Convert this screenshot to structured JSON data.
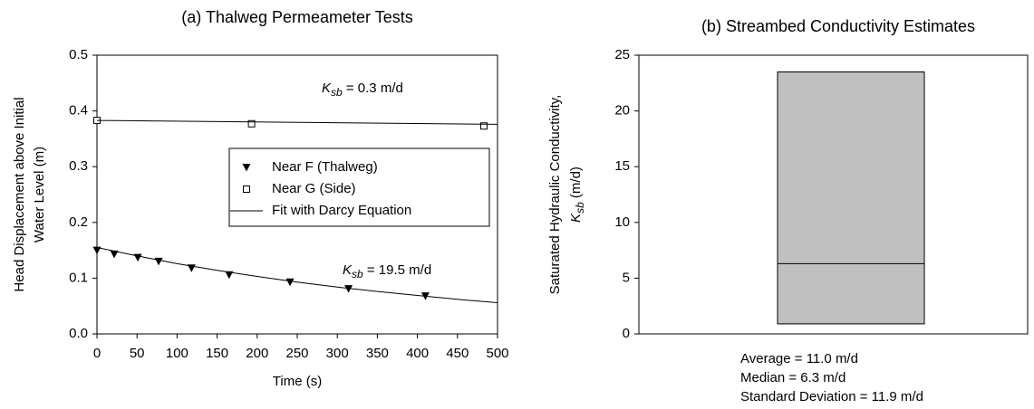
{
  "chart_data": [
    {
      "type": "scatter-line",
      "title": "(a) Thalweg Permeameter Tests",
      "xlabel": "Time (s)",
      "ylabel": [
        "Head Displacement above Initial",
        "Water Level (m)"
      ],
      "xlim": [
        0,
        500
      ],
      "xticks": [
        0,
        50,
        100,
        150,
        200,
        250,
        300,
        350,
        400,
        450,
        500
      ],
      "ylim": [
        0,
        0.5
      ],
      "yticks": [
        {
          "value": 0,
          "label": "0.0"
        },
        0.1,
        0.2,
        0.3,
        0.4,
        0.5
      ],
      "series": [
        {
          "name": "Near F (Thalweg)",
          "marker": "triangle-down",
          "color": "#000000",
          "x": [
            0,
            21.5,
            51,
            77,
            118,
            165,
            241,
            314,
            410
          ],
          "values": [
            0.15,
            0.143,
            0.137,
            0.13,
            0.118,
            0.106,
            0.093,
            0.081,
            0.068
          ]
        },
        {
          "name": "Near G (Side)",
          "marker": "square",
          "color": "#000000",
          "x": [
            0,
            193,
            483
          ],
          "values": [
            0.383,
            0.377,
            0.373
          ]
        },
        {
          "name": "Fit with Darcy Equation",
          "marker": "line",
          "color": "#000000",
          "x": [
            0,
            50,
            100,
            150,
            200,
            250,
            300,
            350,
            400,
            450,
            500
          ],
          "values": [
            0.155,
            0.14,
            0.126,
            0.114,
            0.103,
            0.093,
            0.084,
            0.076,
            0.069,
            0.062,
            0.056
          ]
        },
        {
          "marker": "line",
          "color": "#000000",
          "x": [
            0,
            500
          ],
          "values": [
            0.383,
            0.376
          ]
        }
      ],
      "annotations": [
        {
          "symbol": "K",
          "subscript": "sb",
          "text": " = 0.3 m/d"
        },
        {
          "symbol": "K",
          "subscript": "sb",
          "text": " = 19.5 m/d"
        }
      ],
      "legend": "right-middle"
    },
    {
      "type": "box",
      "title": "(b) Streambed Conductivity Estimates",
      "ylabel": {
        "line1": "Saturated Hydraulic Conductivity,",
        "symbol": "K",
        "subscript": "sb",
        "unit": " (m/d)"
      },
      "ylim": [
        0,
        25
      ],
      "yticks": [
        0,
        5,
        10,
        15,
        20,
        25
      ],
      "color": "#c0c0c0",
      "values": {
        "min": 0.9,
        "median": 6.3,
        "max": 23.5
      },
      "notes": [
        "Average = 11.0 m/d",
        "Median = 6.3 m/d",
        "Standard Deviation = 11.9 m/d"
      ]
    }
  ]
}
